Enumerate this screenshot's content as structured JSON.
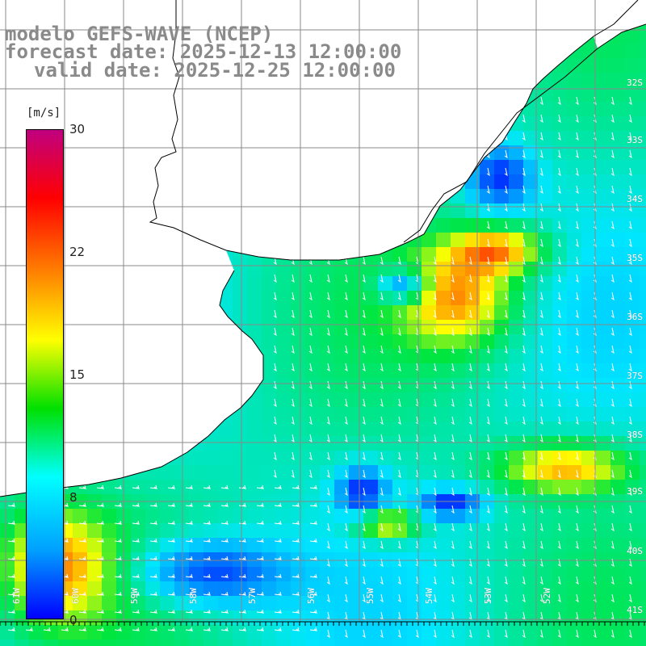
{
  "header": {
    "model": "modelo GEFS-WAVE (NCEP)",
    "forecast": "forecast date: 2025-12-13 12:00:00",
    "valid": "valid date: 2025-12-25 12:00:00"
  },
  "colorbar": {
    "unit": "[m/s]",
    "ticks": [
      "30",
      "22",
      "15",
      "8",
      "0"
    ],
    "colors": [
      "#0000ff",
      "#00a0ff",
      "#00ffff",
      "#00e000",
      "#ffff00",
      "#ff8000",
      "#ff0000",
      "#c00080"
    ]
  },
  "lat_labels": [
    "32S",
    "33S",
    "34S",
    "35S",
    "36S",
    "37S",
    "38S",
    "39S",
    "40S",
    "41S"
  ],
  "lon_labels": [
    "61W",
    "60W",
    "59W",
    "58W",
    "57W",
    "56W",
    "55W",
    "54W",
    "53W",
    "52W"
  ],
  "colors": {
    "land": "#ffffff",
    "grid": "#888888",
    "coast": "#000000",
    "arrow": "#ffffff"
  }
}
